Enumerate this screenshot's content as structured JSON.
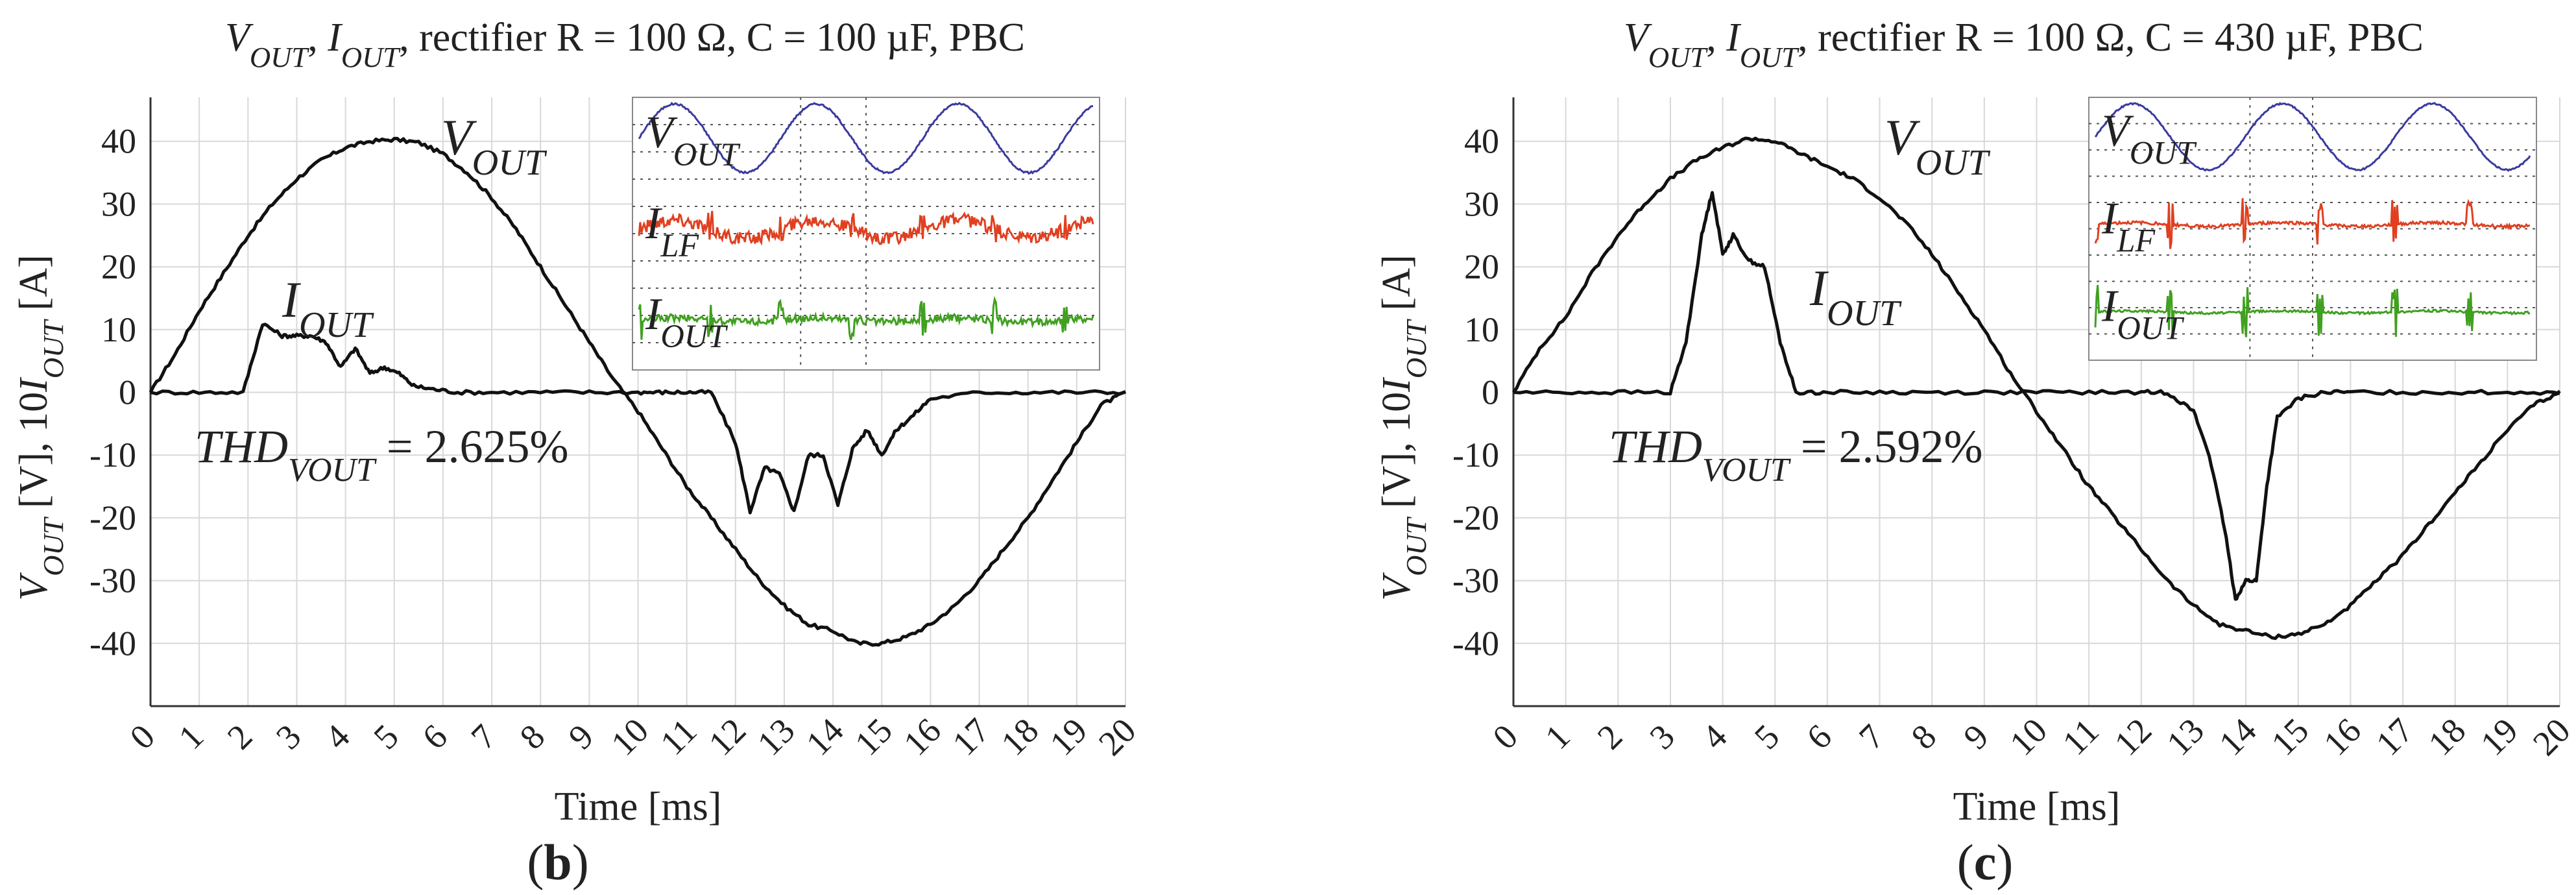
{
  "chart_data": [
    {
      "type": "line",
      "title": "V_OUT, I_OUT, rectifier R = 100 Ω, C = 100 µF, PBC",
      "title_parts": {
        "v": "V",
        "v_sub": "OUT",
        "i": "I",
        "i_sub": "OUT",
        "rest": "rectifier R = 100 Ω, C = 100 µF, PBC"
      },
      "xlabel": "Time [ms]",
      "ylabel": "V_OUT [V], 10I_OUT [A]",
      "ylabel_parts": {
        "v": "V",
        "v_sub": "OUT",
        "mid": " [V], 10",
        "i": "I",
        "i_sub": "OUT",
        "end": " [A]"
      },
      "xlim": [
        0,
        20
      ],
      "ylim": [
        -50,
        47
      ],
      "xticks": [
        0,
        1,
        2,
        3,
        4,
        5,
        6,
        7,
        8,
        9,
        10,
        11,
        12,
        13,
        14,
        15,
        16,
        17,
        18,
        19,
        20
      ],
      "yticks": [
        -40,
        -30,
        -20,
        -10,
        0,
        10,
        20,
        30,
        40
      ],
      "panel_label": "b",
      "thd_text": {
        "prefix": "THD",
        "sub": "VOUT",
        "value": " = 2.625%"
      },
      "series": [
        {
          "name": "V_OUT",
          "label": "V",
          "label_sub": "OUT",
          "x": [
            0,
            0.5,
            1,
            1.5,
            2,
            2.5,
            3,
            3.5,
            4,
            4.5,
            5,
            5.5,
            6,
            6.5,
            7,
            7.5,
            8,
            8.5,
            9,
            9.5,
            10,
            10.5,
            11,
            11.5,
            12,
            12.5,
            13,
            13.5,
            14,
            14.5,
            15,
            15.5,
            16,
            16.5,
            17,
            17.5,
            18,
            18.5,
            19,
            19.5,
            20
          ],
          "y": [
            0,
            6,
            13,
            19,
            25,
            30,
            34,
            37,
            39,
            40,
            40.3,
            39.8,
            38,
            35,
            31,
            26,
            20,
            14,
            8,
            2,
            -3,
            -9,
            -15,
            -20,
            -25,
            -30,
            -34,
            -37,
            -38,
            -40,
            -40,
            -39,
            -37,
            -34,
            -30,
            -25,
            -20,
            -14,
            -8,
            -2,
            0
          ]
        },
        {
          "name": "I_OUT",
          "label": "I",
          "label_sub": "OUT",
          "x": [
            0,
            1,
            1.9,
            2.3,
            2.7,
            3,
            3.3,
            3.6,
            3.9,
            4.2,
            4.5,
            4.8,
            5.1,
            5.4,
            5.8,
            6.3,
            7,
            8,
            9,
            10,
            10.5,
            11,
            11.5,
            12,
            12.3,
            12.6,
            12.9,
            13.2,
            13.5,
            13.8,
            14.1,
            14.4,
            14.7,
            15,
            15.3,
            15.6,
            16,
            17,
            18,
            19,
            20
          ],
          "y": [
            0,
            0,
            0,
            11,
            9,
            9,
            9,
            8,
            4,
            7,
            3,
            4,
            3,
            1,
            0.5,
            0,
            0,
            0,
            0,
            0,
            0,
            0,
            0,
            -8,
            -19,
            -12,
            -13,
            -19,
            -10,
            -10,
            -18,
            -9,
            -6,
            -10,
            -6,
            -4,
            -1,
            0,
            0,
            0,
            0
          ]
        }
      ],
      "inset": {
        "labels": [
          {
            "text": "V",
            "sub": "OUT",
            "color": "#3a3aa0"
          },
          {
            "text": "I",
            "sub": "LF",
            "color": "#e04020"
          },
          {
            "text": "I",
            "sub": "OUT",
            "color": "#40a020"
          }
        ],
        "traces": [
          {
            "name": "V_OUT scope",
            "color": "#3a3aa0",
            "cycles": 3.2,
            "amplitude": 0.9,
            "noise": 0.05,
            "spikes": 0.0
          },
          {
            "name": "I_LF scope",
            "color": "#e04020",
            "cycles": 3.2,
            "amplitude": 0.25,
            "noise": 0.35,
            "spikes": 0.35
          },
          {
            "name": "I_OUT scope",
            "color": "#40a020",
            "cycles": 3.2,
            "amplitude": 0.05,
            "noise": 0.2,
            "spikes": 0.55
          }
        ]
      }
    },
    {
      "type": "line",
      "title": "V_OUT, I_OUT, rectifier R = 100 Ω, C = 430 µF, PBC",
      "title_parts": {
        "v": "V",
        "v_sub": "OUT",
        "i": "I",
        "i_sub": "OUT",
        "rest": "rectifier R = 100 Ω, C = 430 µF, PBC"
      },
      "xlabel": "Time [ms]",
      "ylabel": "V_OUT [V], 10I_OUT [A]",
      "ylabel_parts": {
        "v": "V",
        "v_sub": "OUT",
        "mid": " [V], 10",
        "i": "I",
        "i_sub": "OUT",
        "end": " [A]"
      },
      "xlim": [
        0,
        20
      ],
      "ylim": [
        -50,
        47
      ],
      "xticks": [
        0,
        1,
        2,
        3,
        4,
        5,
        6,
        7,
        8,
        9,
        10,
        11,
        12,
        13,
        14,
        15,
        16,
        17,
        18,
        19,
        20
      ],
      "yticks": [
        -40,
        -30,
        -20,
        -10,
        0,
        10,
        20,
        30,
        40
      ],
      "panel_label": "c",
      "thd_text": {
        "prefix": "THD",
        "sub": "VOUT",
        "value": " = 2.592%"
      },
      "series": [
        {
          "name": "V_OUT",
          "label": "V",
          "label_sub": "OUT",
          "x": [
            0,
            0.5,
            1,
            1.5,
            2,
            2.5,
            3,
            3.5,
            4,
            4.5,
            5,
            5.5,
            6,
            6.5,
            7,
            7.5,
            8,
            8.5,
            9,
            9.5,
            10,
            10.5,
            11,
            11.5,
            12,
            12.5,
            13,
            13.5,
            14,
            14.5,
            15,
            15.5,
            16,
            16.5,
            17,
            17.5,
            18,
            18.5,
            19,
            19.5,
            20
          ],
          "y": [
            0,
            7,
            12,
            19,
            25,
            30,
            34,
            37,
            39,
            40.5,
            40,
            38,
            36,
            34,
            31,
            27,
            22,
            16,
            10,
            3,
            -3,
            -9,
            -15,
            -20,
            -25,
            -30,
            -34,
            -37,
            -38,
            -39,
            -38.5,
            -37,
            -34,
            -30,
            -26,
            -21,
            -16,
            -11,
            -6,
            -2,
            0
          ]
        },
        {
          "name": "I_OUT",
          "label": "I",
          "label_sub": "OUT",
          "x": [
            0,
            1,
            2,
            3,
            3.3,
            3.6,
            3.8,
            4,
            4.2,
            4.5,
            4.8,
            5.1,
            5.4,
            6,
            7,
            8,
            9,
            10,
            11,
            12,
            12.5,
            13,
            13.3,
            13.6,
            13.8,
            14,
            14.2,
            14.4,
            14.6,
            15,
            15.5,
            16,
            17,
            18,
            19,
            20
          ],
          "y": [
            0,
            0,
            0,
            0,
            8,
            25,
            32,
            22,
            25,
            21,
            20,
            8,
            0,
            0,
            0,
            0,
            0,
            0,
            0,
            0,
            0,
            -3,
            -10,
            -22,
            -33,
            -30,
            -30,
            -15,
            -4,
            -1,
            0,
            0,
            0,
            0,
            0,
            0
          ]
        }
      ],
      "inset": {
        "labels": [
          {
            "text": "V",
            "sub": "OUT",
            "color": "#3a3aa0"
          },
          {
            "text": "I",
            "sub": "LF",
            "color": "#e04020"
          },
          {
            "text": "I",
            "sub": "OUT",
            "color": "#40a020"
          }
        ],
        "traces": [
          {
            "name": "V_OUT scope",
            "color": "#3a3aa0",
            "cycles": 2.9,
            "amplitude": 0.9,
            "noise": 0.04,
            "spikes": 0.0
          },
          {
            "name": "I_LF scope",
            "color": "#e04020",
            "cycles": 2.9,
            "amplitude": 0.05,
            "noise": 0.08,
            "spikes": 0.7
          },
          {
            "name": "I_OUT scope",
            "color": "#40a020",
            "cycles": 2.9,
            "amplitude": 0.03,
            "noise": 0.06,
            "spikes": 0.75
          }
        ]
      }
    }
  ]
}
